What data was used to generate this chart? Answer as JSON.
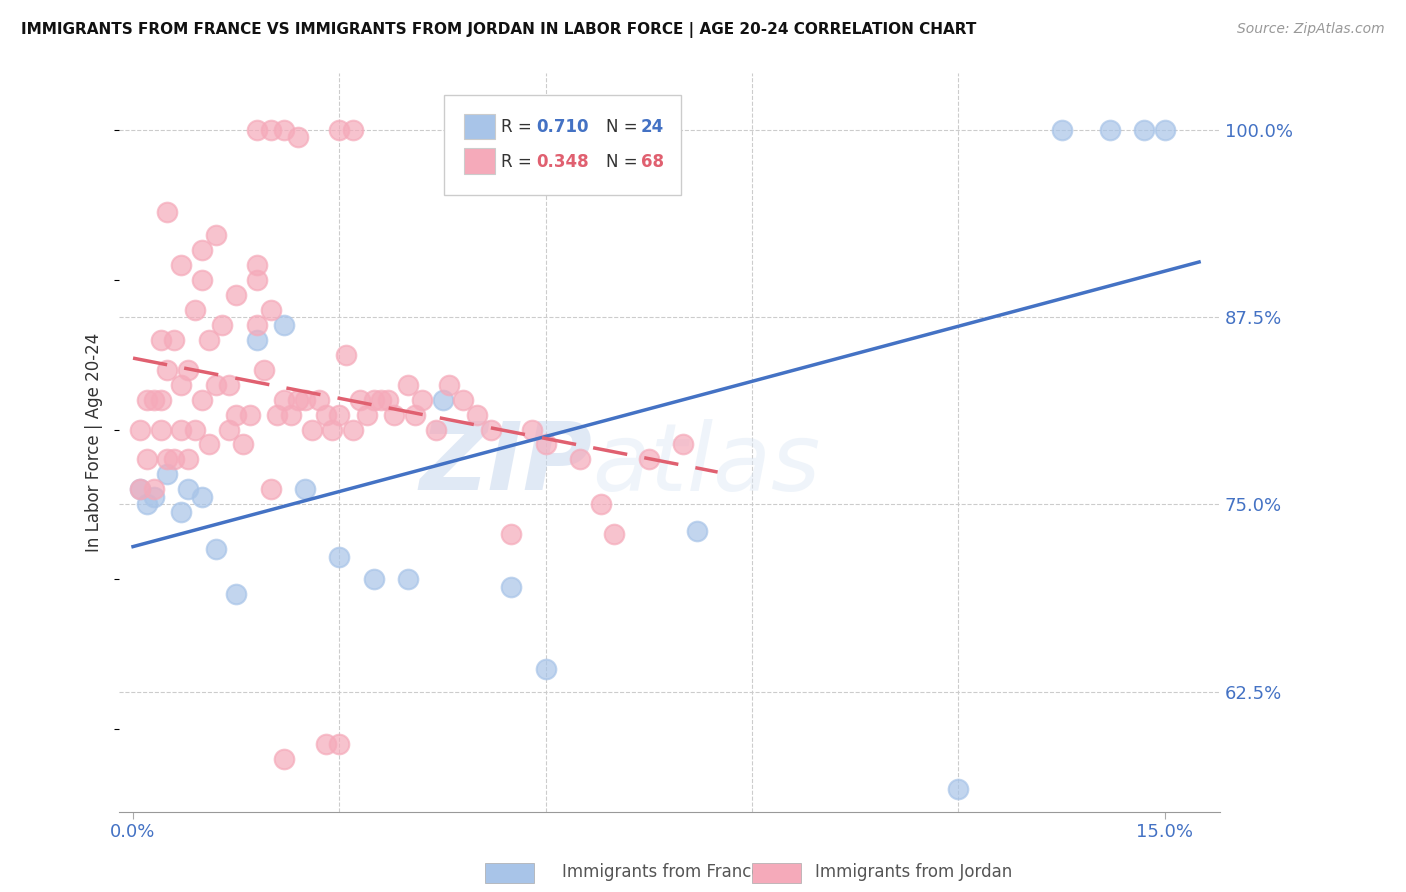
{
  "title": "IMMIGRANTS FROM FRANCE VS IMMIGRANTS FROM JORDAN IN LABOR FORCE | AGE 20-24 CORRELATION CHART",
  "source": "Source: ZipAtlas.com",
  "ylabel": "In Labor Force | Age 20-24",
  "y_ticks": [
    0.625,
    0.75,
    0.875,
    1.0
  ],
  "y_tick_labels": [
    "62.5%",
    "75.0%",
    "87.5%",
    "100.0%"
  ],
  "xlim": [
    -0.002,
    0.158
  ],
  "ylim": [
    0.545,
    1.038
  ],
  "france_color": "#a8c4e8",
  "jordan_color": "#f5aaba",
  "france_line_color": "#4472c4",
  "jordan_line_color": "#e06070",
  "france_r_text": "0.710",
  "france_n_text": "24",
  "jordan_r_text": "0.348",
  "jordan_n_text": "68",
  "france_r_color": "#4472c4",
  "jordan_r_color": "#e06070",
  "watermark_zip": "ZIP",
  "watermark_atlas": "atlas",
  "france_x": [
    0.001,
    0.002,
    0.003,
    0.004,
    0.005,
    0.008,
    0.01,
    0.012,
    0.014,
    0.02,
    0.022,
    0.028,
    0.032,
    0.036,
    0.04,
    0.042,
    0.05,
    0.055,
    0.058,
    0.082,
    0.12,
    0.135,
    0.142,
    0.15
  ],
  "france_y": [
    0.76,
    0.75,
    0.755,
    0.77,
    0.745,
    0.76,
    0.755,
    0.72,
    0.68,
    0.86,
    0.87,
    0.76,
    0.71,
    0.7,
    0.695,
    0.82,
    0.69,
    0.7,
    0.635,
    0.73,
    0.56,
    1.0,
    1.0,
    1.0
  ],
  "jordan_x": [
    0.001,
    0.001,
    0.002,
    0.002,
    0.003,
    0.003,
    0.004,
    0.004,
    0.005,
    0.005,
    0.006,
    0.006,
    0.007,
    0.008,
    0.008,
    0.009,
    0.01,
    0.01,
    0.011,
    0.012,
    0.013,
    0.014,
    0.015,
    0.016,
    0.018,
    0.018,
    0.019,
    0.02,
    0.021,
    0.022,
    0.023,
    0.024,
    0.025,
    0.026,
    0.028,
    0.029,
    0.03,
    0.032,
    0.033,
    0.034,
    0.035,
    0.036,
    0.036,
    0.037,
    0.038,
    0.04,
    0.04,
    0.041,
    0.042,
    0.043,
    0.044,
    0.045,
    0.046,
    0.048,
    0.05,
    0.052,
    0.054,
    0.056,
    0.058,
    0.06,
    0.065,
    0.068,
    0.07,
    0.072,
    0.075,
    0.076,
    0.078,
    0.08
  ],
  "jordan_y": [
    0.76,
    0.78,
    0.76,
    0.79,
    0.8,
    0.82,
    0.78,
    0.8,
    0.76,
    0.81,
    0.78,
    0.82,
    0.77,
    0.79,
    0.83,
    0.8,
    0.78,
    0.82,
    0.76,
    0.81,
    0.79,
    0.83,
    0.8,
    0.82,
    0.87,
    0.89,
    0.84,
    0.86,
    0.81,
    0.8,
    0.82,
    0.83,
    0.8,
    0.79,
    0.86,
    0.81,
    0.82,
    0.8,
    0.82,
    0.81,
    0.82,
    0.81,
    0.83,
    0.81,
    0.8,
    0.82,
    0.83,
    0.81,
    0.82,
    0.8,
    0.83,
    0.81,
    0.82,
    0.8,
    0.81,
    0.79,
    0.82,
    0.8,
    0.79,
    0.78,
    0.75,
    0.76,
    0.73,
    0.81,
    0.78,
    0.77,
    0.79,
    0.78
  ]
}
